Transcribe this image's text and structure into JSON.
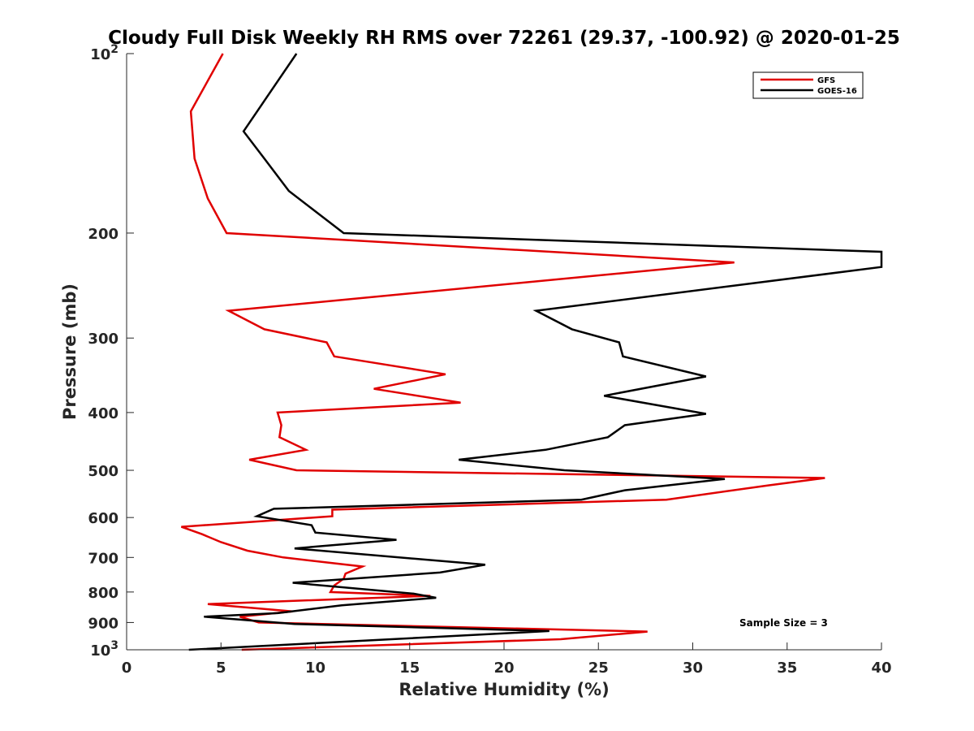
{
  "chart_data": {
    "type": "line",
    "title": "Cloudy Full Disk Weekly RH RMS over 72261 (29.37, -100.92) @ 2020-01-25",
    "xlabel": "Relative Humidity (%)",
    "ylabel": "Pressure (mb)",
    "xlim": [
      0,
      40
    ],
    "ylim": [
      100,
      1000
    ],
    "yscale": "log",
    "y_reversed": true,
    "grid": false,
    "legend_position": "top-right",
    "x_ticks": [
      0,
      5,
      10,
      15,
      20,
      25,
      30,
      35,
      40
    ],
    "x_tick_labels": [
      "0",
      "5",
      "10",
      "15",
      "20",
      "25",
      "30",
      "35",
      "40"
    ],
    "y_ticks": [
      100,
      200,
      300,
      400,
      500,
      600,
      700,
      800,
      900,
      1000
    ],
    "y_tick_labels": [
      {
        "base": "10",
        "exp": "2"
      },
      {
        "base": "200",
        "exp": ""
      },
      {
        "base": "300",
        "exp": ""
      },
      {
        "base": "400",
        "exp": ""
      },
      {
        "base": "500",
        "exp": ""
      },
      {
        "base": "600",
        "exp": ""
      },
      {
        "base": "700",
        "exp": ""
      },
      {
        "base": "800",
        "exp": ""
      },
      {
        "base": "900",
        "exp": ""
      },
      {
        "base": "10",
        "exp": "3"
      }
    ],
    "annotation": "Sample Size = 3",
    "series": [
      {
        "name": "GFS",
        "color": "#e00000",
        "points": [
          [
            5.1,
            100
          ],
          [
            3.4,
            125
          ],
          [
            3.6,
            150
          ],
          [
            4.3,
            175
          ],
          [
            5.3,
            200
          ],
          [
            32.2,
            224
          ],
          [
            5.4,
            270
          ],
          [
            7.3,
            290
          ],
          [
            10.6,
            305
          ],
          [
            11.0,
            322
          ],
          [
            16.9,
            345
          ],
          [
            13.1,
            365
          ],
          [
            17.7,
            385
          ],
          [
            8.0,
            400
          ],
          [
            8.2,
            420
          ],
          [
            8.1,
            440
          ],
          [
            9.5,
            462
          ],
          [
            6.5,
            480
          ],
          [
            9.0,
            500
          ],
          [
            37.0,
            515
          ],
          [
            34.0,
            530
          ],
          [
            28.6,
            560
          ],
          [
            10.9,
            582
          ],
          [
            10.9,
            597
          ],
          [
            2.9,
            622
          ],
          [
            4.0,
            640
          ],
          [
            5.0,
            660
          ],
          [
            6.4,
            682
          ],
          [
            8.3,
            700
          ],
          [
            12.5,
            725
          ],
          [
            11.6,
            745
          ],
          [
            11.5,
            760
          ],
          [
            11.0,
            780
          ],
          [
            10.8,
            800
          ],
          [
            16.1,
            812
          ],
          [
            4.3,
            838
          ],
          [
            8.8,
            862
          ],
          [
            6.0,
            880
          ],
          [
            7.0,
            900
          ],
          [
            27.6,
            932
          ],
          [
            23.0,
            960
          ],
          [
            6.1,
            1000
          ]
        ]
      },
      {
        "name": "GOES-16",
        "color": "#000000",
        "points": [
          [
            9.0,
            100
          ],
          [
            7.3,
            120
          ],
          [
            6.2,
            135
          ],
          [
            7.3,
            150
          ],
          [
            8.6,
            170
          ],
          [
            11.5,
            200
          ],
          [
            40.0,
            215
          ],
          [
            40.0,
            228
          ],
          [
            21.7,
            270
          ],
          [
            23.6,
            290
          ],
          [
            26.1,
            305
          ],
          [
            26.3,
            322
          ],
          [
            30.7,
            348
          ],
          [
            25.3,
            375
          ],
          [
            30.7,
            402
          ],
          [
            26.4,
            420
          ],
          [
            25.5,
            440
          ],
          [
            22.2,
            462
          ],
          [
            17.6,
            480
          ],
          [
            23.2,
            500
          ],
          [
            31.7,
            517
          ],
          [
            26.4,
            540
          ],
          [
            24.1,
            560
          ],
          [
            7.8,
            580
          ],
          [
            6.9,
            597
          ],
          [
            9.8,
            618
          ],
          [
            10.0,
            636
          ],
          [
            14.3,
            654
          ],
          [
            8.9,
            676
          ],
          [
            19.0,
            720
          ],
          [
            16.6,
            742
          ],
          [
            8.8,
            772
          ],
          [
            15.2,
            805
          ],
          [
            16.4,
            818
          ],
          [
            11.4,
            842
          ],
          [
            8.0,
            868
          ],
          [
            4.1,
            880
          ],
          [
            8.9,
            905
          ],
          [
            22.4,
            930
          ],
          [
            3.3,
            1000
          ]
        ]
      }
    ]
  }
}
